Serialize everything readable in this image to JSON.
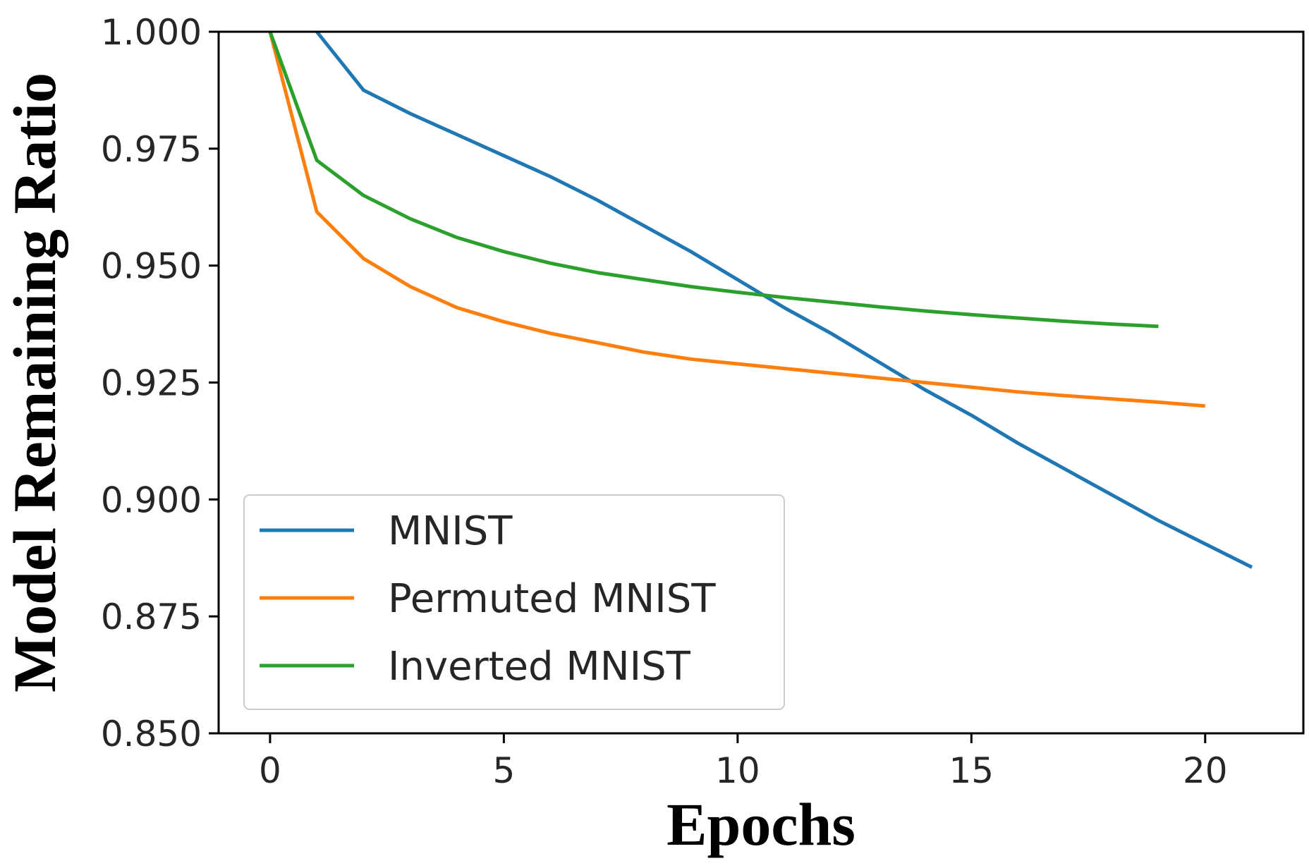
{
  "chart_data": {
    "type": "line",
    "title": "",
    "xlabel": "Epochs",
    "ylabel": "Model Remaining Ratio",
    "xlim": [
      -1.1,
      22.1
    ],
    "ylim": [
      0.85,
      1.0
    ],
    "xticks": [
      0,
      5,
      10,
      15,
      20
    ],
    "xtick_labels": [
      "0",
      "5",
      "10",
      "15",
      "20"
    ],
    "yticks": [
      0.85,
      0.875,
      0.9,
      0.925,
      0.95,
      0.975,
      1.0
    ],
    "ytick_labels": [
      "0.850",
      "0.875",
      "0.900",
      "0.925",
      "0.950",
      "0.975",
      "1.000"
    ],
    "grid": false,
    "legend_position": "lower-left",
    "series": [
      {
        "name": "MNIST",
        "color": "#1f77b4",
        "x": [
          1,
          2,
          3,
          4,
          5,
          6,
          7,
          8,
          9,
          10,
          11,
          12,
          13,
          14,
          15,
          16,
          17,
          18,
          19,
          20,
          21
        ],
        "y": [
          1.0,
          0.9875,
          0.9825,
          0.978,
          0.9735,
          0.969,
          0.964,
          0.9585,
          0.953,
          0.947,
          0.941,
          0.9355,
          0.9295,
          0.9235,
          0.918,
          0.912,
          0.9065,
          0.901,
          0.8955,
          0.8905,
          0.8855
        ]
      },
      {
        "name": "Permuted MNIST",
        "color": "#ff7f0e",
        "x": [
          0,
          1,
          2,
          3,
          4,
          5,
          6,
          7,
          8,
          9,
          10,
          11,
          12,
          13,
          14,
          15,
          16,
          17,
          18,
          19,
          20
        ],
        "y": [
          1.0,
          0.9615,
          0.9515,
          0.9455,
          0.941,
          0.938,
          0.9355,
          0.9335,
          0.9315,
          0.93,
          0.929,
          0.928,
          0.927,
          0.926,
          0.925,
          0.924,
          0.923,
          0.9222,
          0.9215,
          0.9208,
          0.92
        ]
      },
      {
        "name": "Inverted MNIST",
        "color": "#2ca02c",
        "x": [
          0,
          1,
          2,
          3,
          4,
          5,
          6,
          7,
          8,
          9,
          10,
          11,
          12,
          13,
          14,
          15,
          16,
          17,
          18,
          19
        ],
        "y": [
          1.0,
          0.9725,
          0.965,
          0.96,
          0.956,
          0.953,
          0.9505,
          0.9485,
          0.947,
          0.9455,
          0.9443,
          0.9432,
          0.9422,
          0.9412,
          0.9403,
          0.9395,
          0.9388,
          0.9381,
          0.9375,
          0.937
        ]
      }
    ]
  }
}
